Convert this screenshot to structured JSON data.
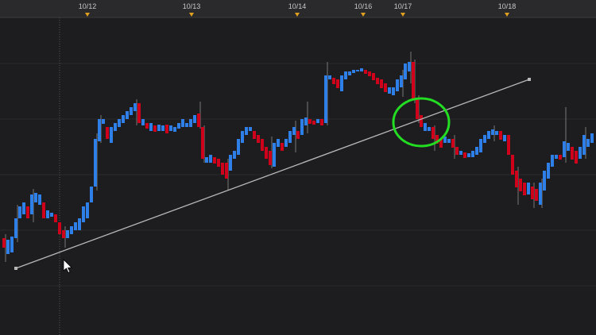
{
  "timeline": {
    "date_labels": [
      "10/12",
      "10/13",
      "10/14",
      "10/16",
      "10/17",
      "10/18"
    ]
  }
}
